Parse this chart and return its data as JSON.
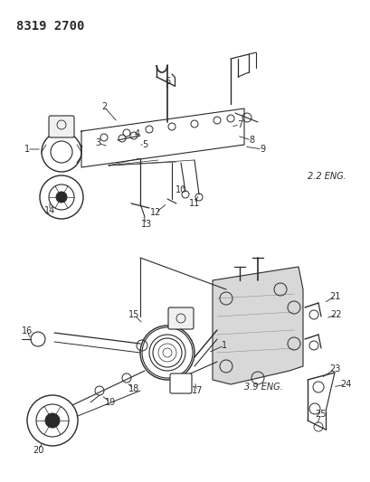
{
  "title": "8319 2700",
  "bg_color": "#ffffff",
  "line_color": "#2a2a2a",
  "text_color": "#2a2a2a",
  "label_2_2_eng": "2.2 ENG.",
  "label_3_9_eng": "3.9 ENG.",
  "title_fontsize": 10,
  "eng_label_fontsize": 7,
  "part_label_fontsize": 7,
  "figsize": [
    4.1,
    5.33
  ],
  "dpi": 100
}
